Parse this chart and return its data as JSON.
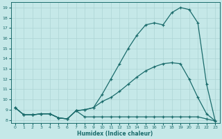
{
  "xlabel": "Humidex (Indice chaleur)",
  "xlim": [
    -0.5,
    23.5
  ],
  "ylim": [
    7.7,
    19.5
  ],
  "xticks": [
    0,
    1,
    2,
    3,
    4,
    5,
    6,
    7,
    8,
    9,
    10,
    11,
    12,
    13,
    14,
    15,
    16,
    17,
    18,
    19,
    20,
    21,
    22,
    23
  ],
  "yticks": [
    8,
    9,
    10,
    11,
    12,
    13,
    14,
    15,
    16,
    17,
    18,
    19
  ],
  "bg_color": "#c5e8e8",
  "line_color": "#1a6b6b",
  "grid_color": "#aed4d4",
  "line1_x": [
    0,
    1,
    2,
    3,
    4,
    5,
    6,
    7,
    8,
    9,
    10,
    11,
    12,
    13,
    14,
    15,
    16,
    17,
    18,
    19,
    20,
    21,
    22,
    23
  ],
  "line1_y": [
    9.2,
    8.5,
    8.5,
    8.6,
    8.6,
    8.2,
    8.1,
    8.9,
    8.3,
    8.3,
    8.3,
    8.3,
    8.3,
    8.3,
    8.3,
    8.3,
    8.3,
    8.3,
    8.3,
    8.3,
    8.3,
    8.3,
    8.1,
    7.9
  ],
  "line2_x": [
    0,
    1,
    2,
    3,
    4,
    5,
    6,
    7,
    8,
    9,
    10,
    11,
    12,
    13,
    14,
    15,
    16,
    17,
    18,
    19,
    20,
    21,
    22,
    23
  ],
  "line2_y": [
    9.2,
    8.5,
    8.5,
    8.6,
    8.6,
    8.2,
    8.1,
    8.9,
    9.0,
    9.2,
    9.8,
    10.2,
    10.8,
    11.5,
    12.2,
    12.8,
    13.2,
    13.5,
    13.6,
    13.5,
    12.0,
    10.2,
    8.6,
    7.9
  ],
  "line3_x": [
    0,
    1,
    2,
    3,
    4,
    5,
    6,
    7,
    8,
    9,
    10,
    11,
    12,
    13,
    14,
    15,
    16,
    17,
    18,
    19,
    20,
    21,
    22,
    23
  ],
  "line3_y": [
    9.2,
    8.5,
    8.5,
    8.6,
    8.6,
    8.2,
    8.1,
    8.9,
    9.0,
    9.2,
    10.5,
    12.0,
    13.5,
    15.0,
    16.3,
    17.3,
    17.5,
    17.3,
    18.5,
    19.0,
    18.8,
    17.5,
    11.5,
    7.9
  ]
}
